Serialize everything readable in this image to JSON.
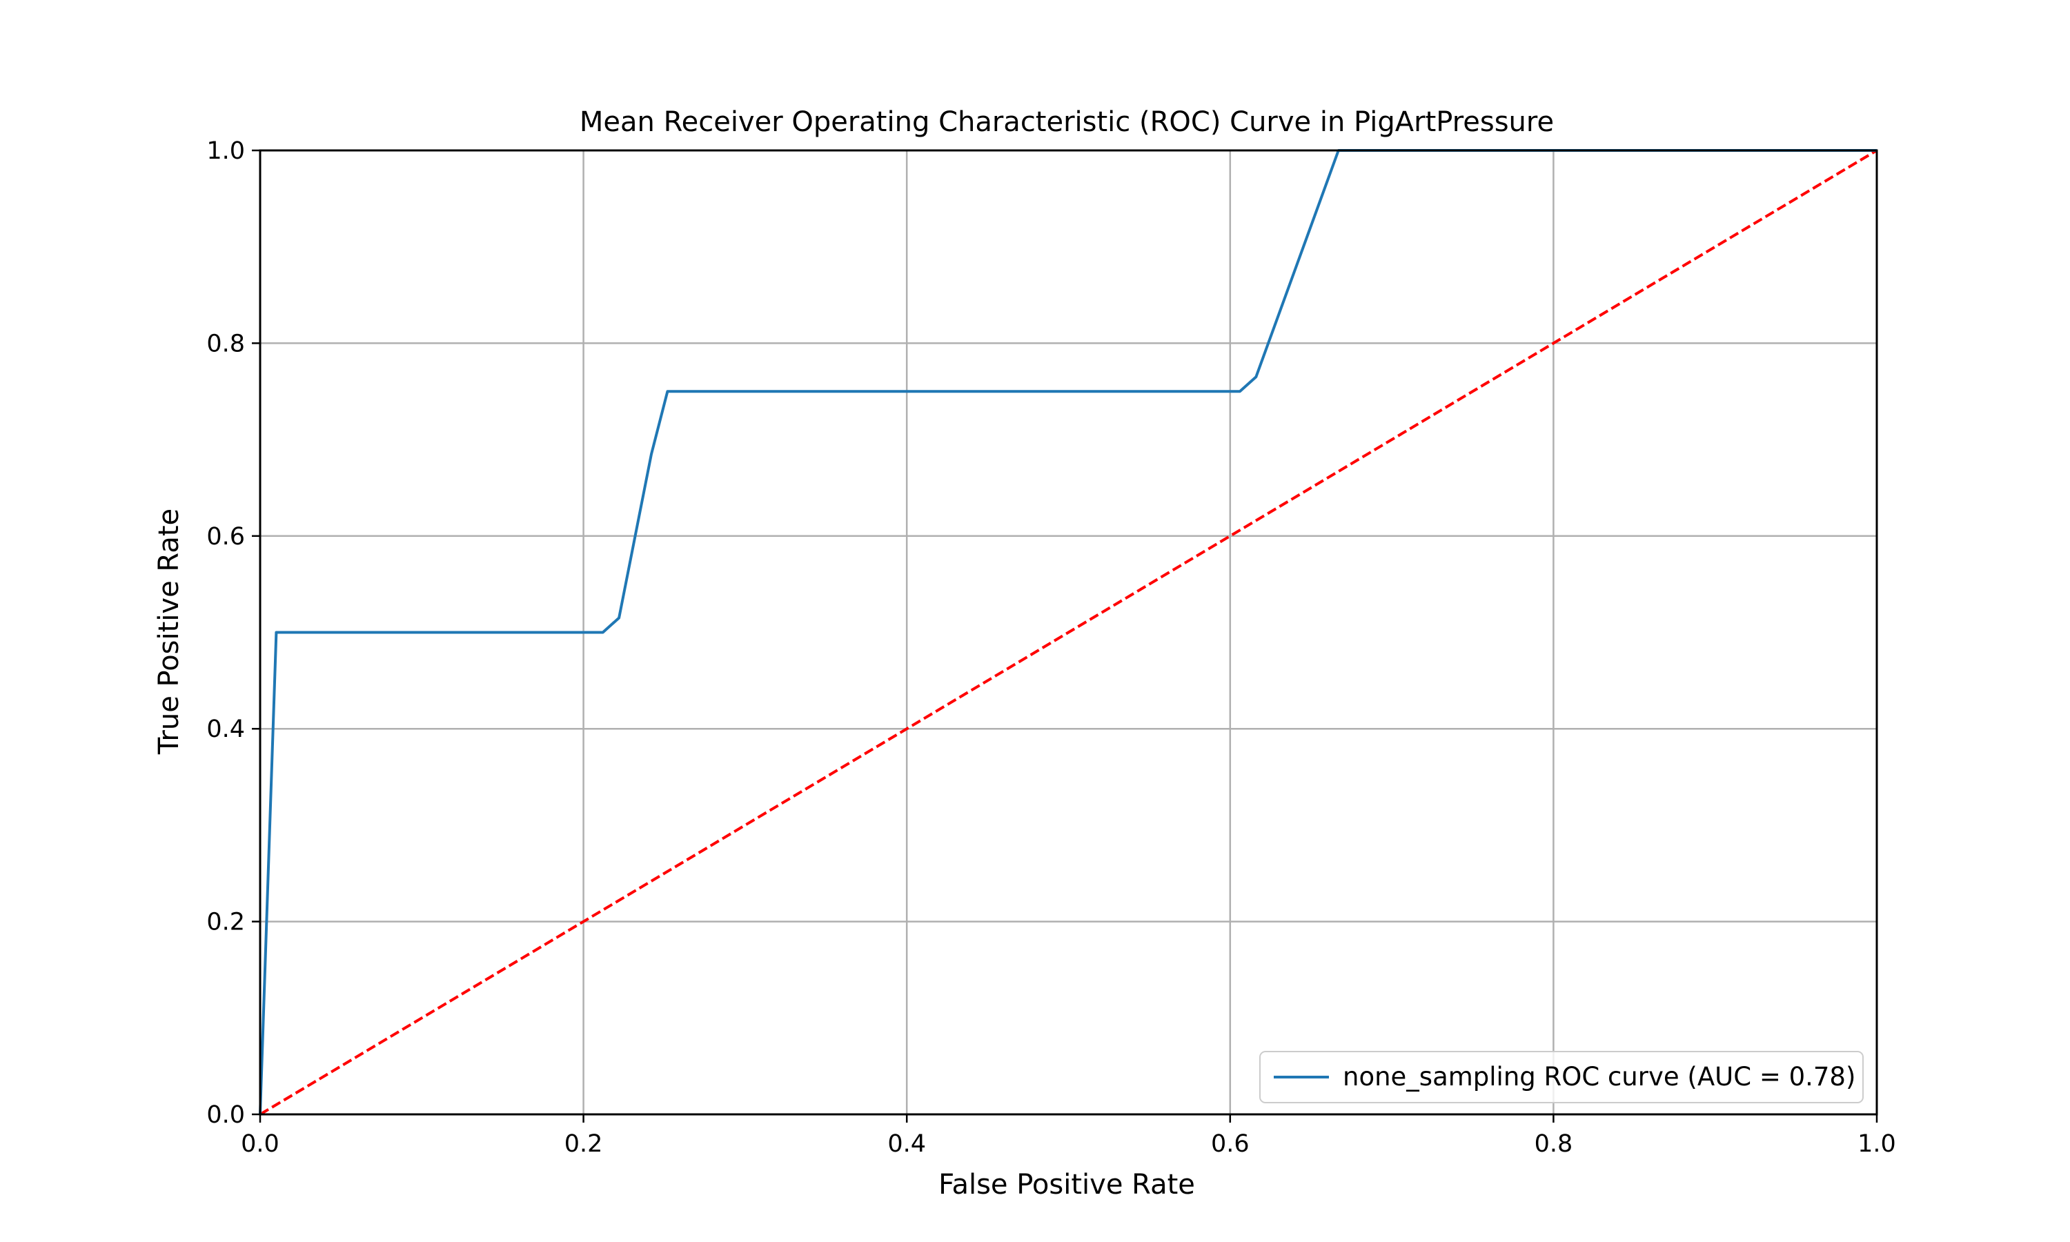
{
  "chart_data": {
    "type": "line",
    "title": "Mean Receiver Operating Characteristic (ROC) Curve in PigArtPressure",
    "xlabel": "False Positive Rate",
    "ylabel": "True Positive Rate",
    "xlim": [
      0.0,
      1.0
    ],
    "ylim": [
      0.0,
      1.0
    ],
    "xticks": [
      "0.0",
      "0.2",
      "0.4",
      "0.6",
      "0.8",
      "1.0"
    ],
    "yticks": [
      "0.0",
      "0.2",
      "0.4",
      "0.6",
      "0.8",
      "1.0"
    ],
    "grid": true,
    "legend_position": "lower-right",
    "series": [
      {
        "name": "none_sampling ROC curve (AUC = 0.78)",
        "color": "#1f77b4",
        "style": "solid",
        "x": [
          0.0,
          0.01,
          0.212,
          0.222,
          0.242,
          0.252,
          0.606,
          0.616,
          0.667,
          1.0
        ],
        "y": [
          0.0,
          0.5,
          0.5,
          0.515,
          0.685,
          0.75,
          0.75,
          0.765,
          1.0,
          1.0
        ]
      },
      {
        "name": "",
        "color": "#ff0000",
        "style": "dashed",
        "x": [
          0.0,
          1.0
        ],
        "y": [
          0.0,
          1.0
        ]
      }
    ]
  }
}
